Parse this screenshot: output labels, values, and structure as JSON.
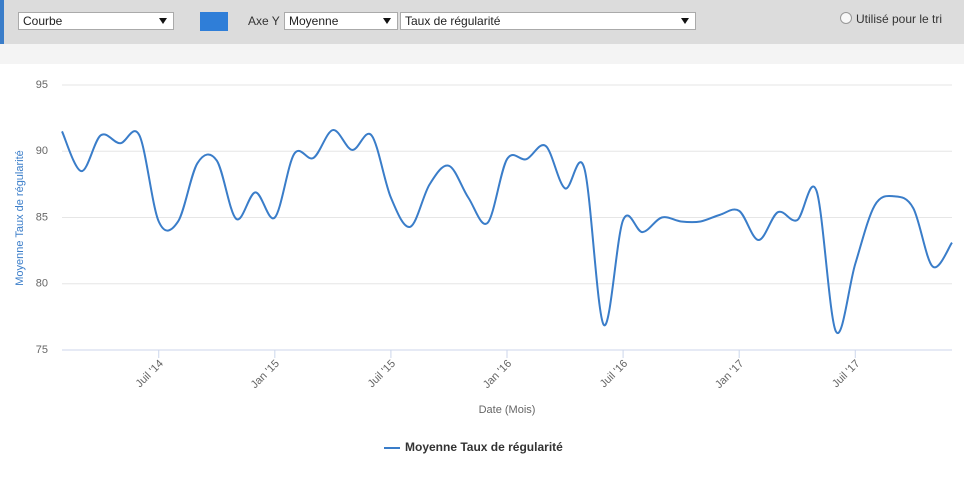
{
  "toolbar": {
    "chart_type": "Courbe",
    "axis_label": "Axe Y",
    "aggregate": "Moyenne",
    "metric": "Taux de régularité",
    "sort_option": "Utilisé pour le tri"
  },
  "chart_data": {
    "type": "line",
    "y_label": "Moyenne Taux de régularité",
    "x_label": "Date (Mois)",
    "x": [
      "2014-02",
      "2014-03",
      "2014-04",
      "2014-05",
      "2014-06",
      "2014-07",
      "2014-08",
      "2014-09",
      "2014-10",
      "2014-11",
      "2014-12",
      "2015-01",
      "2015-02",
      "2015-03",
      "2015-04",
      "2015-05",
      "2015-06",
      "2015-07",
      "2015-08",
      "2015-09",
      "2015-10",
      "2015-11",
      "2015-12",
      "2016-01",
      "2016-02",
      "2016-03",
      "2016-04",
      "2016-05",
      "2016-06",
      "2016-07",
      "2016-08",
      "2016-09",
      "2016-10",
      "2016-11",
      "2016-12",
      "2017-01",
      "2017-02",
      "2017-03",
      "2017-04",
      "2017-05",
      "2017-06",
      "2017-07",
      "2017-08",
      "2017-09",
      "2017-10",
      "2017-11",
      "2017-12"
    ],
    "series": [
      {
        "name": "Moyenne Taux de régularité",
        "color": "#3a7dc9",
        "values": [
          91.5,
          88.5,
          91.2,
          90.6,
          91.2,
          84.7,
          84.7,
          89.1,
          89.3,
          84.9,
          86.9,
          85.0,
          89.8,
          89.5,
          91.6,
          90.1,
          91.2,
          86.5,
          84.3,
          87.5,
          88.9,
          86.5,
          84.6,
          89.4,
          89.4,
          90.4,
          87.2,
          88.7,
          76.9,
          84.8,
          83.9,
          85.0,
          84.7,
          84.7,
          85.2,
          85.5,
          83.3,
          85.4,
          84.8,
          87.0,
          76.4,
          81.5,
          85.9,
          86.6,
          85.7,
          81.3,
          83.1
        ]
      }
    ],
    "xlim": [
      "2014-02",
      "2017-12"
    ],
    "xticks": [
      {
        "value": "2014-07",
        "label": "Juil '14"
      },
      {
        "value": "2015-01",
        "label": "Jan '15"
      },
      {
        "value": "2015-07",
        "label": "Juil '15"
      },
      {
        "value": "2016-01",
        "label": "Jan '16"
      },
      {
        "value": "2016-07",
        "label": "Juil '16"
      },
      {
        "value": "2017-01",
        "label": "Jan '17"
      },
      {
        "value": "2017-07",
        "label": "Juil '17"
      }
    ],
    "ylim": [
      75,
      95
    ],
    "yticks": [
      75,
      80,
      85,
      90,
      95
    ],
    "grid": true,
    "legend": "bottom"
  }
}
